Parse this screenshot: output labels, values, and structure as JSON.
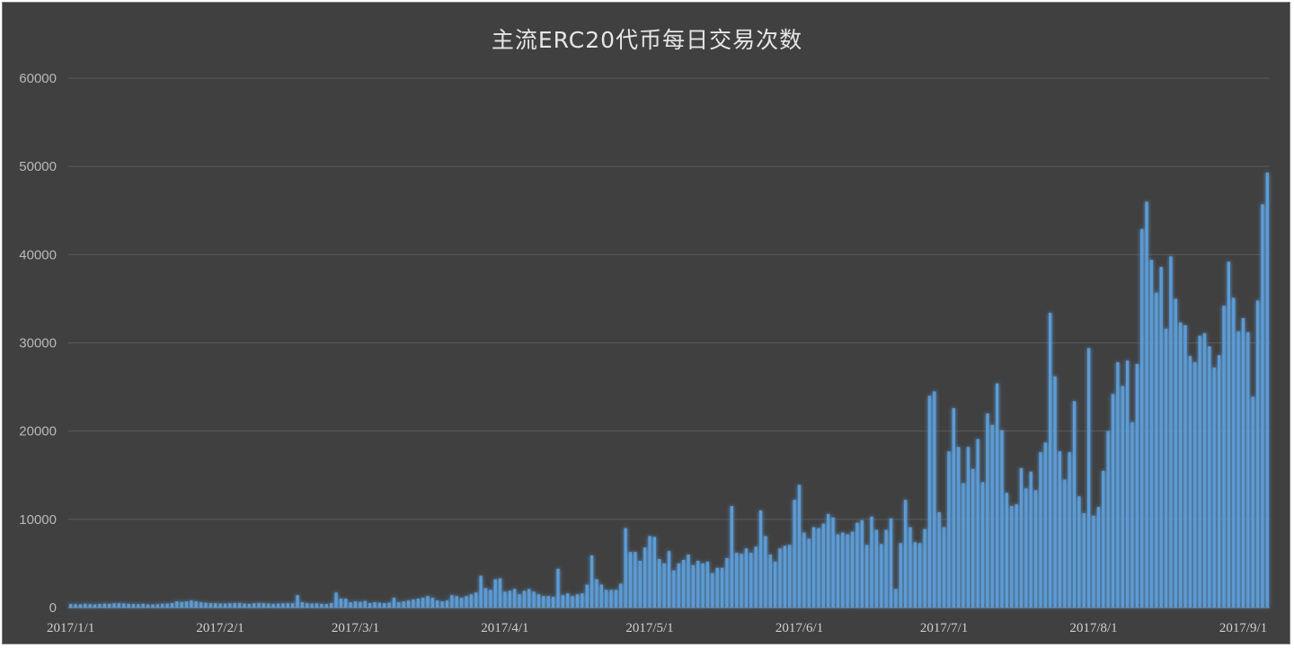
{
  "chart_data": {
    "type": "bar",
    "title": "主流ERC20代币每日交易次数",
    "xlabel": "",
    "ylabel": "",
    "ylim": [
      0,
      60000
    ],
    "y_ticks": [
      "0",
      "10000",
      "20000",
      "30000",
      "40000",
      "50000",
      "60000"
    ],
    "x_ticks": [
      "2017/1/1",
      "2017/2/1",
      "2017/3/1",
      "2017/4/1",
      "2017/5/1",
      "2017/6/1",
      "2017/7/1",
      "2017/8/1",
      "2017/9/1"
    ],
    "x_tick_days": [
      0,
      31,
      59,
      90,
      120,
      151,
      181,
      212,
      243
    ],
    "grid": true,
    "colors": {
      "bar": "#5b9bd5",
      "glow": "#5b9bd5",
      "grid": "#5a5a5a",
      "background": "#404040"
    },
    "values": [
      400,
      380,
      350,
      420,
      380,
      360,
      400,
      450,
      420,
      480,
      500,
      460,
      420,
      400,
      380,
      420,
      360,
      350,
      380,
      420,
      450,
      500,
      700,
      650,
      700,
      800,
      700,
      600,
      550,
      500,
      500,
      450,
      450,
      480,
      500,
      520,
      450,
      420,
      480,
      520,
      500,
      450,
      420,
      450,
      480,
      500,
      480,
      1400,
      600,
      500,
      450,
      480,
      420,
      400,
      500,
      1700,
      1000,
      1000,
      600,
      700,
      650,
      750,
      500,
      600,
      550,
      500,
      550,
      1100,
      600,
      700,
      800,
      900,
      1000,
      1100,
      1300,
      1100,
      800,
      700,
      800,
      1400,
      1300,
      1100,
      1300,
      1500,
      1700,
      3600,
      2200,
      2000,
      3200,
      3300,
      1800,
      1900,
      2100,
      1500,
      1900,
      2100,
      1800,
      1500,
      1300,
      1300,
      1200,
      4400,
      1400,
      1600,
      1300,
      1500,
      1600,
      2600,
      5900,
      3200,
      2600,
      2000,
      2000,
      2000,
      2700,
      9000,
      6300,
      6300,
      5300,
      6800,
      8100,
      8000,
      5500,
      5000,
      6400,
      4200,
      5000,
      5400,
      6000,
      4800,
      5300,
      5000,
      5200,
      3900,
      4500,
      4500,
      5600,
      11500,
      6200,
      6100,
      6700,
      6200,
      6900,
      11000,
      8100,
      6000,
      5200,
      6700,
      7000,
      7100,
      12200,
      13900,
      8500,
      7800,
      9100,
      9000,
      9500,
      10600,
      10200,
      8300,
      8500,
      8300,
      8600,
      9600,
      9900,
      7100,
      10300,
      8800,
      7200,
      8800,
      10100,
      2100,
      7300,
      12200,
      9100,
      7400,
      7300,
      8900,
      24000,
      24500,
      10800,
      9100,
      17700,
      22600,
      18200,
      14100,
      18200,
      15700,
      19100,
      14200,
      22000,
      20700,
      25400,
      20100,
      13000,
      11500,
      11700,
      15800,
      13500,
      15400,
      13300,
      17600,
      18700,
      33400,
      26200,
      17700,
      14500,
      17600,
      23400,
      12600,
      10700,
      29400,
      10400,
      11400,
      15500,
      20000,
      24200,
      27800,
      25100,
      28000,
      21000,
      27600,
      42900,
      46000,
      39400,
      35700,
      38600,
      31600,
      39800,
      35000,
      32300,
      32000,
      28500,
      27800,
      30800,
      31100,
      29600,
      27200,
      28600,
      34200,
      39200,
      35100,
      31300,
      32800,
      31200,
      23900,
      34800,
      45700,
      49300
    ]
  }
}
